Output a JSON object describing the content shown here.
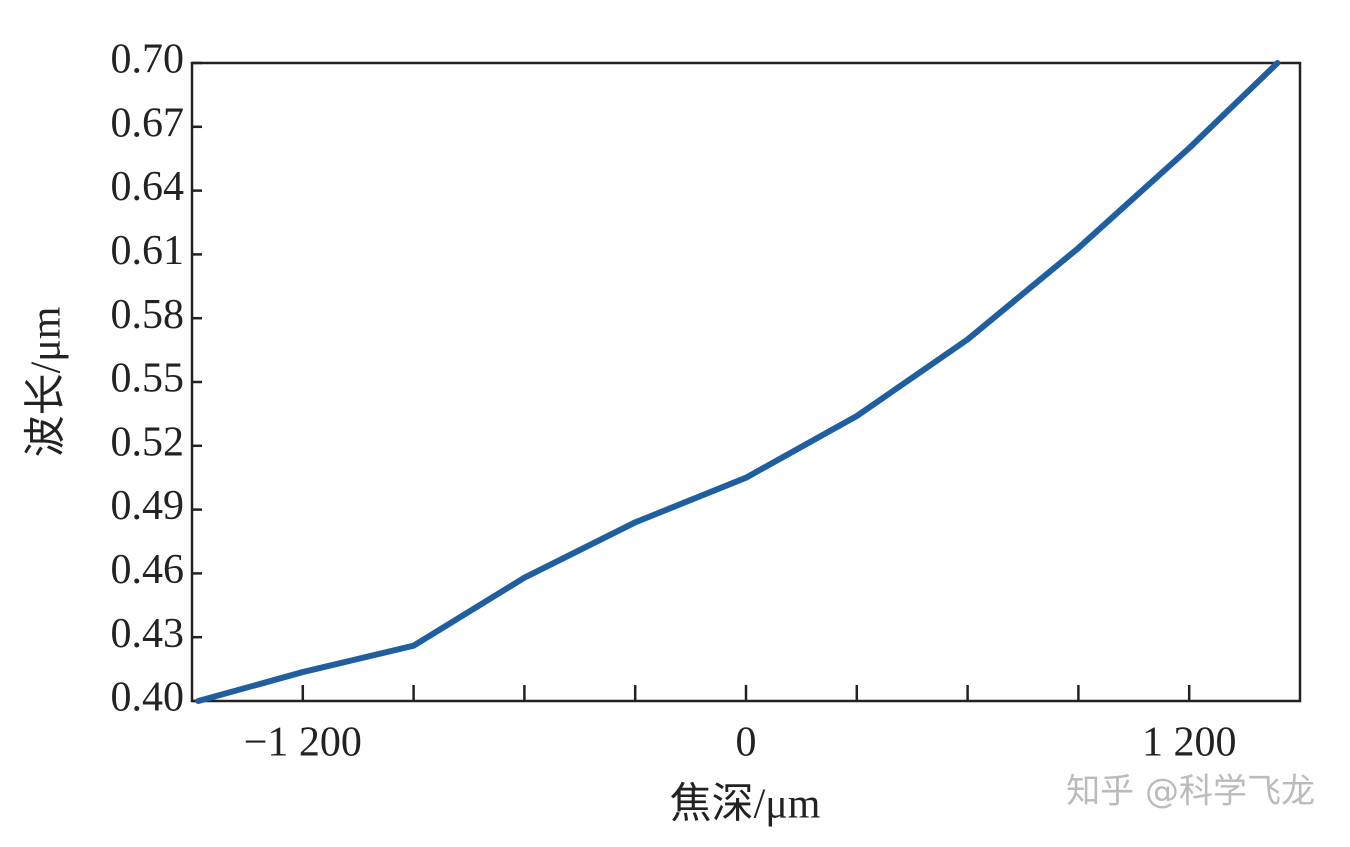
{
  "chart_data": {
    "type": "line",
    "xlabel": "焦深/μm",
    "ylabel": "波长/μm",
    "watermark": "知乎 @科学飞龙",
    "x": [
      -1483,
      -1200,
      -900,
      -600,
      -300,
      0,
      300,
      600,
      900,
      1200,
      1439
    ],
    "series": [
      {
        "color": "#1f5fa0",
        "values": [
          0.4,
          0.4136,
          0.426,
          0.458,
          0.484,
          0.505,
          0.534,
          0.57,
          0.613,
          0.66,
          0.7
        ]
      }
    ],
    "xlim": [
      -1500,
      1500
    ],
    "xticks": [
      {
        "value": -1200,
        "label": "−1 200"
      },
      0,
      {
        "value": 1200,
        "label": "1 200"
      }
    ],
    "xticks_minor": [
      -900,
      -600,
      -300,
      300,
      600,
      900
    ],
    "ylim": [
      0.4,
      0.7
    ],
    "yticks": [
      {
        "value": 0.4,
        "label": "0.40"
      },
      0.43,
      0.46,
      0.49,
      0.52,
      0.55,
      0.58,
      0.61,
      0.64,
      0.67,
      {
        "value": 0.7,
        "label": "0.70"
      }
    ]
  }
}
